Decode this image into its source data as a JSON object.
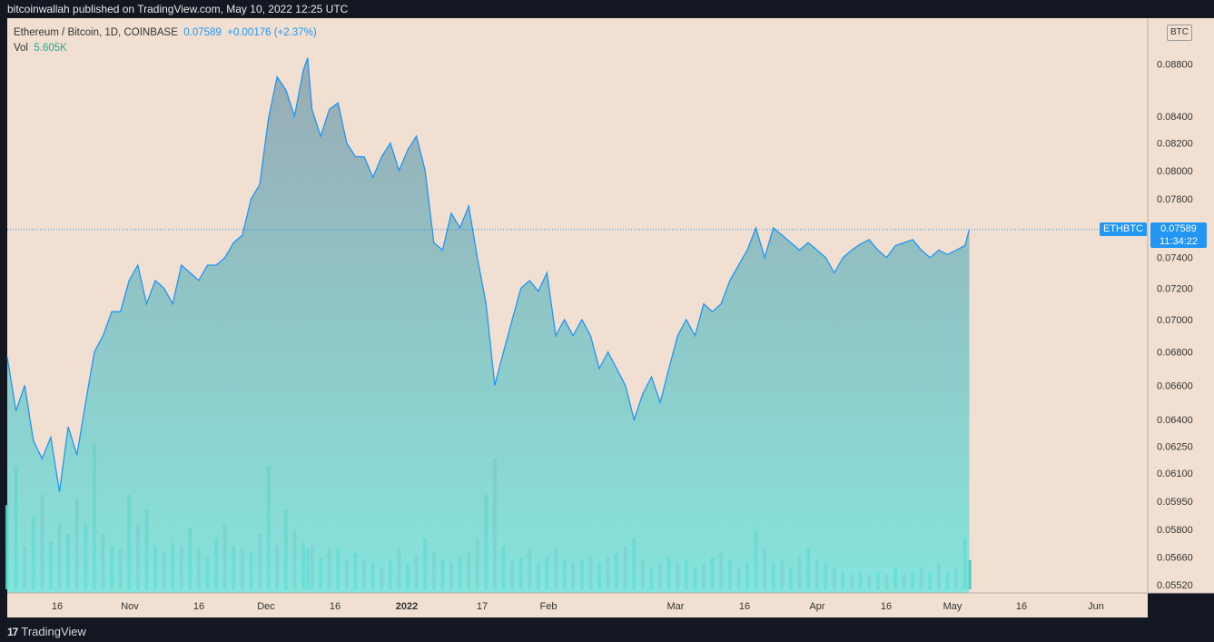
{
  "header": {
    "publisher": "bitcoinwallah published on TradingView.com, May 10, 2022 12:25 UTC"
  },
  "legend": {
    "symbol": "Ethereum / Bitcoin, 1D, COINBASE",
    "last": "0.07589",
    "change": "+0.00176 (+2.37%)",
    "vol_label": "Vol",
    "vol_value": "5.605K"
  },
  "axis": {
    "unit": "BTC",
    "y_ticks": [
      "0.08800",
      "0.08400",
      "0.08200",
      "0.08000",
      "0.07800",
      "0.07400",
      "0.07200",
      "0.07000",
      "0.06800",
      "0.06600",
      "0.06400",
      "0.06250",
      "0.06100",
      "0.05950",
      "0.05800",
      "0.05660",
      "0.05520"
    ],
    "x_ticks": [
      "16",
      "Nov",
      "16",
      "Dec",
      "16",
      "2022",
      "17",
      "Feb",
      "Mar",
      "16",
      "Apr",
      "16",
      "May",
      "16",
      "Jun"
    ]
  },
  "badges": {
    "symbol": "ETHBTC",
    "price": "0.07589",
    "countdown": "11:34:22"
  },
  "footer": {
    "brand": "TradingView"
  },
  "colors": {
    "background": "#f1e0d1",
    "line": "#2196f3",
    "fill_top": "#8aa1ae",
    "fill_bottom": "#72e5de",
    "vol_up": "#4fc2b1",
    "vol_down": "#ae9c98"
  },
  "chart_data": {
    "type": "area",
    "title": "Ethereum / Bitcoin, 1D, COINBASE",
    "scale": "log",
    "ylim": [
      0.0548,
      0.0917
    ],
    "xlim": [
      "2021-10-01",
      "2022-06-20"
    ],
    "x": [
      "2021-10-01",
      "2021-10-03",
      "2021-10-05",
      "2021-10-07",
      "2021-10-09",
      "2021-10-11",
      "2021-10-13",
      "2021-10-15",
      "2021-10-17",
      "2021-10-19",
      "2021-10-21",
      "2021-10-23",
      "2021-10-25",
      "2021-10-27",
      "2021-10-29",
      "2021-10-31",
      "2021-11-02",
      "2021-11-04",
      "2021-11-06",
      "2021-11-08",
      "2021-11-10",
      "2021-11-12",
      "2021-11-14",
      "2021-11-16",
      "2021-11-18",
      "2021-11-20",
      "2021-11-22",
      "2021-11-24",
      "2021-11-26",
      "2021-11-28",
      "2021-11-30",
      "2021-12-02",
      "2021-12-04",
      "2021-12-06",
      "2021-12-08",
      "2021-12-09",
      "2021-12-10",
      "2021-12-12",
      "2021-12-14",
      "2021-12-16",
      "2021-12-18",
      "2021-12-20",
      "2021-12-22",
      "2021-12-24",
      "2021-12-26",
      "2021-12-28",
      "2021-12-30",
      "2022-01-01",
      "2022-01-03",
      "2022-01-05",
      "2022-01-07",
      "2022-01-09",
      "2022-01-11",
      "2022-01-13",
      "2022-01-15",
      "2022-01-17",
      "2022-01-19",
      "2022-01-21",
      "2022-01-23",
      "2022-01-25",
      "2022-01-27",
      "2022-01-29",
      "2022-01-31",
      "2022-02-02",
      "2022-02-04",
      "2022-02-06",
      "2022-02-08",
      "2022-02-10",
      "2022-02-12",
      "2022-02-14",
      "2022-02-16",
      "2022-02-18",
      "2022-02-20",
      "2022-02-22",
      "2022-02-24",
      "2022-02-26",
      "2022-02-28",
      "2022-03-02",
      "2022-03-04",
      "2022-03-06",
      "2022-03-08",
      "2022-03-10",
      "2022-03-12",
      "2022-03-14",
      "2022-03-16",
      "2022-03-18",
      "2022-03-20",
      "2022-03-22",
      "2022-03-24",
      "2022-03-26",
      "2022-03-28",
      "2022-03-30",
      "2022-04-01",
      "2022-04-03",
      "2022-04-05",
      "2022-04-07",
      "2022-04-09",
      "2022-04-11",
      "2022-04-13",
      "2022-04-15",
      "2022-04-17",
      "2022-04-19",
      "2022-04-21",
      "2022-04-23",
      "2022-04-25",
      "2022-04-27",
      "2022-04-29",
      "2022-05-01",
      "2022-05-03",
      "2022-05-05",
      "2022-05-07",
      "2022-05-09",
      "2022-05-10"
    ],
    "values": [
      0.0677,
      0.0645,
      0.066,
      0.0628,
      0.0618,
      0.063,
      0.06,
      0.0636,
      0.062,
      0.065,
      0.068,
      0.069,
      0.0705,
      0.0705,
      0.0725,
      0.0735,
      0.071,
      0.0725,
      0.072,
      0.071,
      0.0735,
      0.073,
      0.0725,
      0.0735,
      0.0735,
      0.074,
      0.075,
      0.0755,
      0.078,
      0.079,
      0.0838,
      0.087,
      0.086,
      0.084,
      0.0875,
      0.0885,
      0.0845,
      0.0825,
      0.0845,
      0.085,
      0.082,
      0.081,
      0.081,
      0.0795,
      0.081,
      0.082,
      0.08,
      0.0815,
      0.0825,
      0.08,
      0.075,
      0.0745,
      0.077,
      0.076,
      0.0775,
      0.074,
      0.071,
      0.066,
      0.068,
      0.07,
      0.072,
      0.0725,
      0.0718,
      0.073,
      0.069,
      0.07,
      0.069,
      0.07,
      0.069,
      0.067,
      0.068,
      0.067,
      0.066,
      0.064,
      0.0655,
      0.0665,
      0.065,
      0.067,
      0.069,
      0.07,
      0.069,
      0.071,
      0.0705,
      0.071,
      0.0725,
      0.0735,
      0.0745,
      0.076,
      0.074,
      0.076,
      0.0755,
      0.075,
      0.0745,
      0.075,
      0.0745,
      0.074,
      0.073,
      0.074,
      0.0745,
      0.0749,
      0.0752,
      0.0745,
      0.074,
      0.0748,
      0.075,
      0.0752,
      0.0745,
      0.074,
      0.0745,
      0.0742,
      0.0745,
      0.0748,
      0.07589
    ],
    "volumes": [
      0.58,
      0.85,
      0.3,
      0.5,
      0.65,
      0.33,
      0.45,
      0.38,
      0.62,
      0.45,
      1.0,
      0.38,
      0.3,
      0.28,
      0.65,
      0.45,
      0.55,
      0.3,
      0.25,
      0.32,
      0.3,
      0.42,
      0.28,
      0.22,
      0.35,
      0.45,
      0.3,
      0.28,
      0.25,
      0.38,
      0.85,
      0.3,
      0.55,
      0.4,
      0.32,
      0.28,
      0.3,
      0.22,
      0.28,
      0.28,
      0.2,
      0.25,
      0.2,
      0.18,
      0.15,
      0.2,
      0.28,
      0.18,
      0.22,
      0.35,
      0.25,
      0.2,
      0.18,
      0.22,
      0.25,
      0.35,
      0.65,
      0.9,
      0.3,
      0.2,
      0.22,
      0.28,
      0.18,
      0.22,
      0.28,
      0.2,
      0.18,
      0.2,
      0.22,
      0.18,
      0.22,
      0.25,
      0.3,
      0.35,
      0.2,
      0.15,
      0.18,
      0.22,
      0.18,
      0.2,
      0.15,
      0.18,
      0.22,
      0.25,
      0.2,
      0.15,
      0.18,
      0.4,
      0.28,
      0.18,
      0.2,
      0.15,
      0.22,
      0.28,
      0.2,
      0.18,
      0.15,
      0.12,
      0.1,
      0.12,
      0.1,
      0.12,
      0.1,
      0.15,
      0.1,
      0.12,
      0.15,
      0.12,
      0.18,
      0.12,
      0.15,
      0.35,
      0.2
    ],
    "volume_up": [
      true,
      true,
      false,
      true,
      false,
      true,
      false,
      true,
      false,
      true,
      true,
      false,
      true,
      false,
      true,
      false,
      true,
      true,
      false,
      true,
      false,
      true,
      false,
      true,
      true,
      false,
      true,
      false,
      true,
      false,
      true,
      false,
      true,
      false,
      true,
      true,
      false,
      true,
      false,
      true,
      false,
      true,
      false,
      true,
      false,
      true,
      false,
      true,
      false,
      true,
      false,
      true,
      false,
      true,
      false,
      false,
      true,
      false,
      true,
      false,
      true,
      false,
      true,
      true,
      false,
      true,
      false,
      true,
      false,
      true,
      false,
      true,
      false,
      true,
      false,
      true,
      false,
      true,
      false,
      true,
      true,
      false,
      true,
      false,
      true,
      false,
      true,
      true,
      false,
      true,
      false,
      true,
      false,
      true,
      false,
      true,
      false,
      true,
      false,
      true,
      false,
      true,
      false,
      true,
      false,
      true,
      false,
      true,
      false,
      true,
      false,
      true,
      true
    ],
    "last_price": 0.07589
  }
}
